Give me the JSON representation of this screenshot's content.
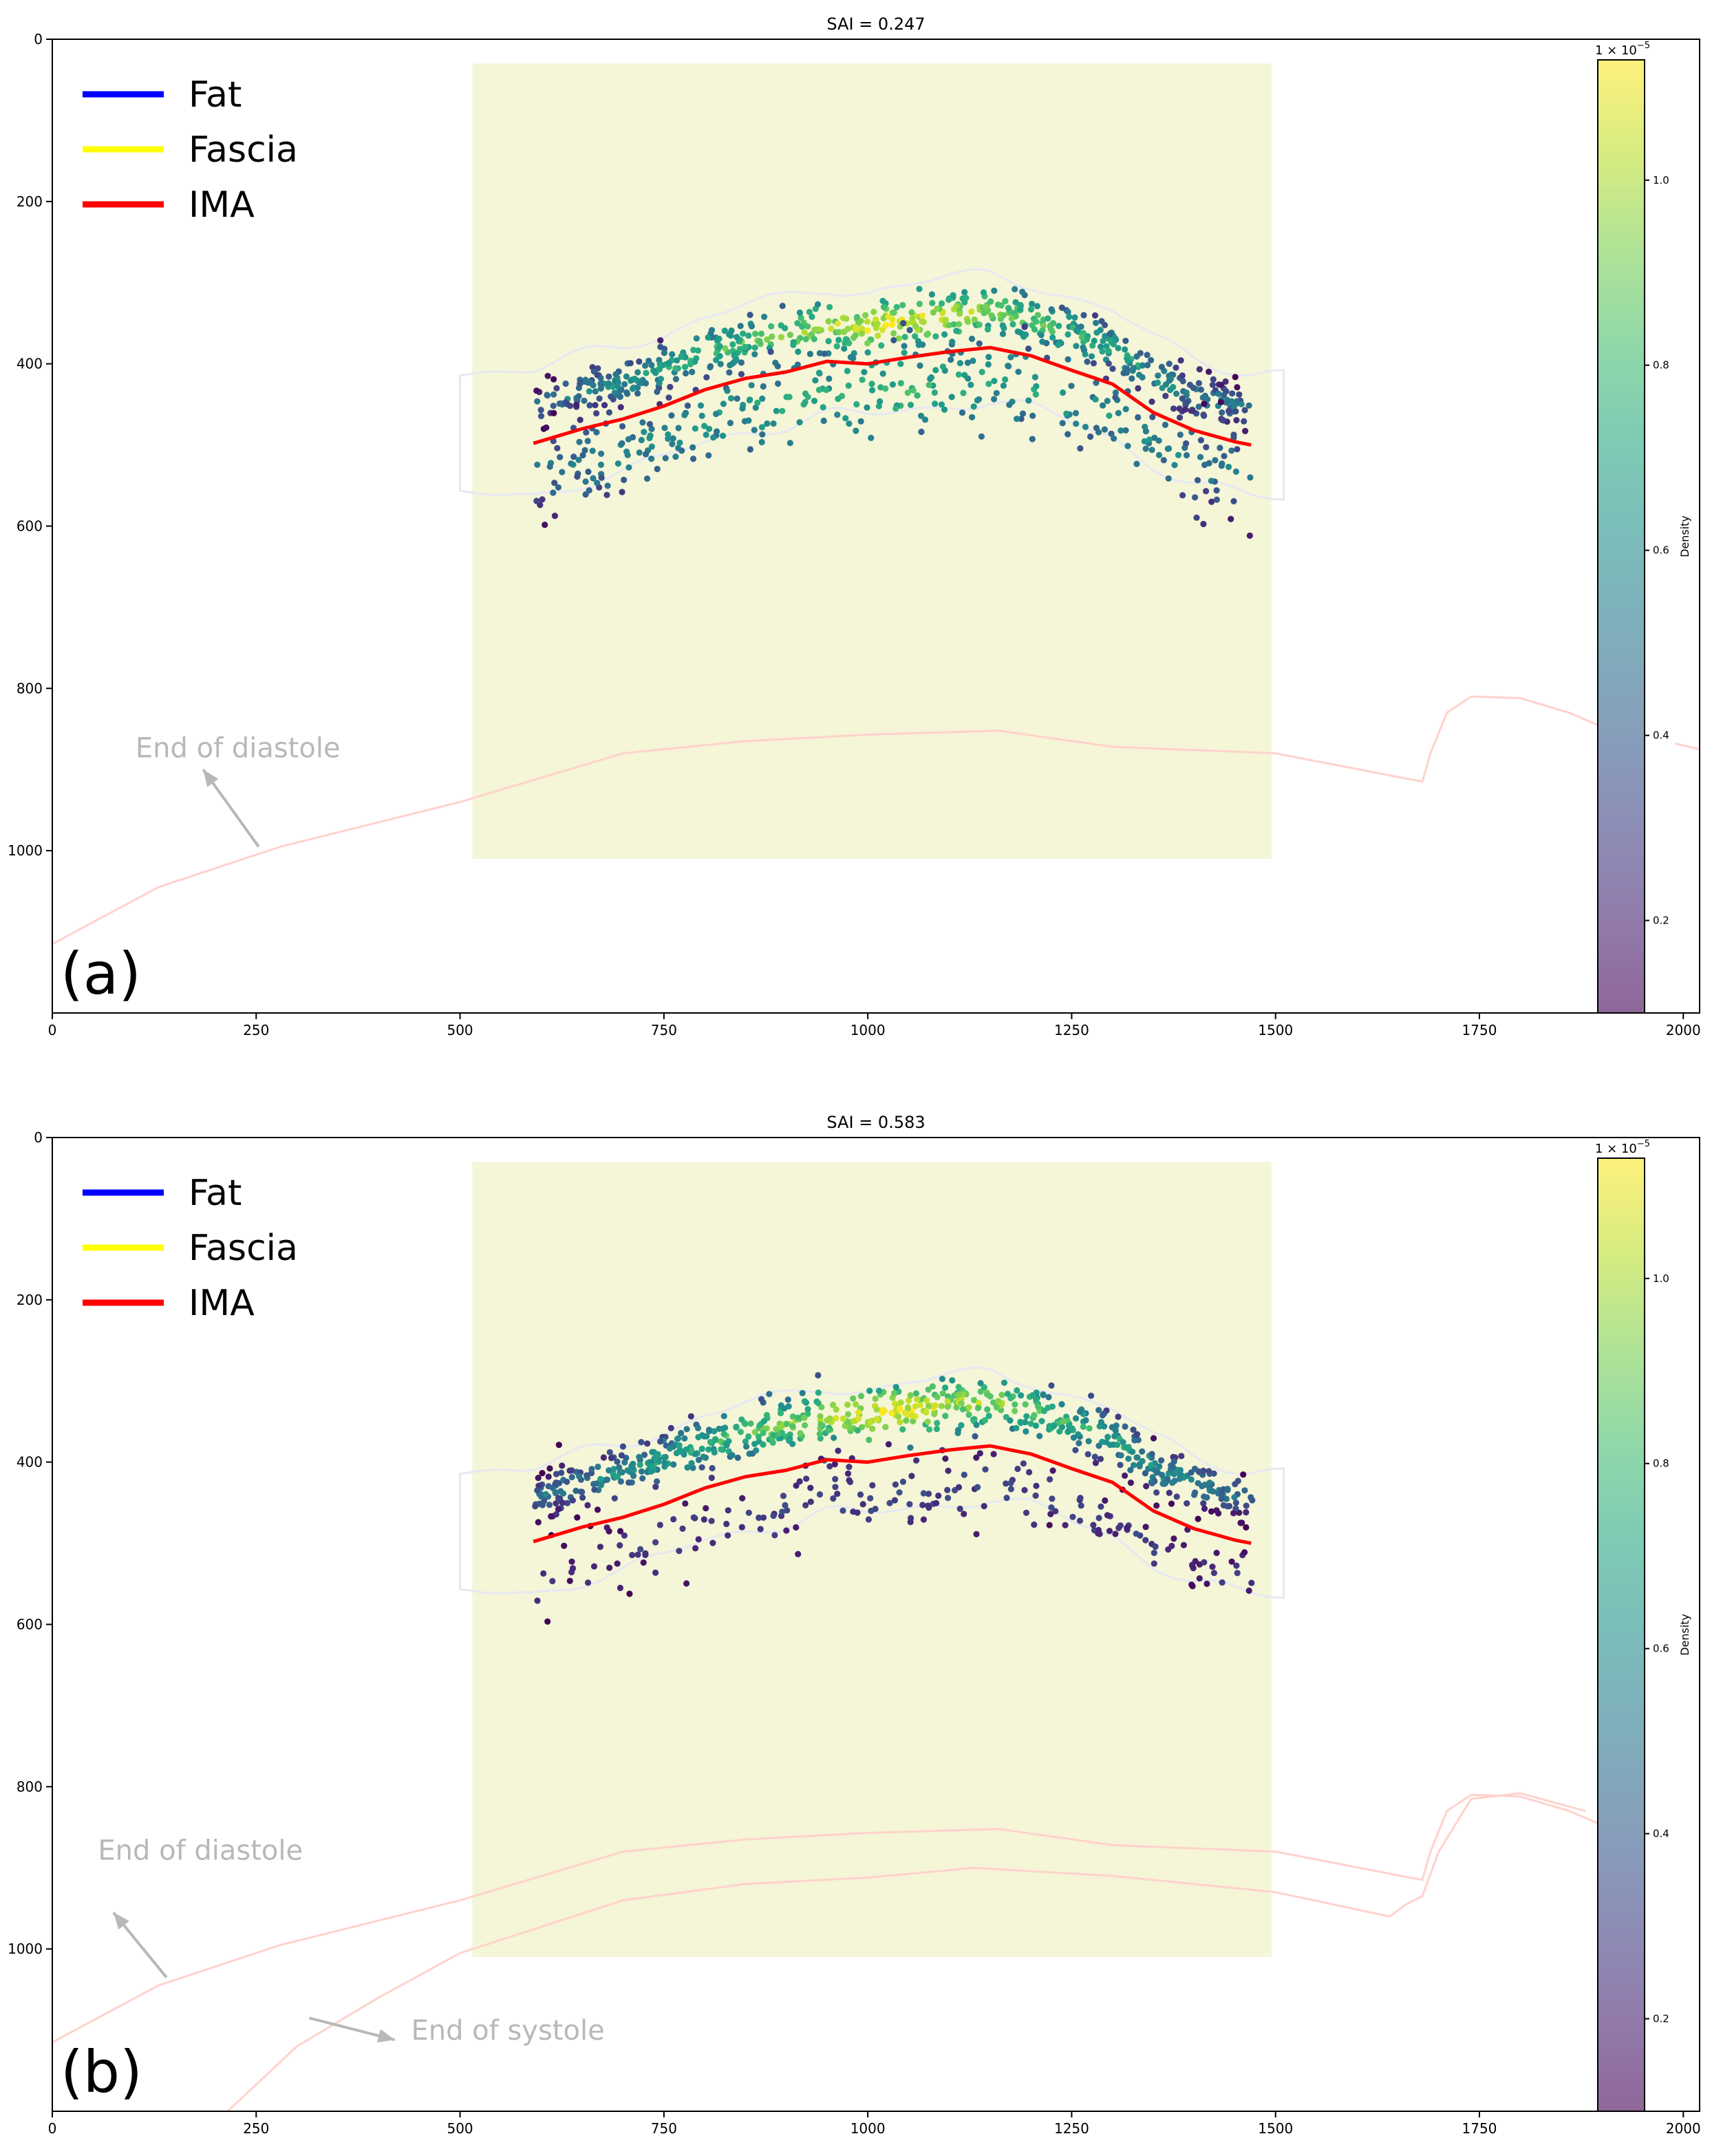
{
  "colors": {
    "fat": "#0000ff",
    "fascia": "#ffff00",
    "ima": "#ff0000",
    "roi": "#f5f5d8",
    "contour": "#e6e8f2",
    "boundary": "#ffd2cc",
    "annotation": "#b8b8b8"
  },
  "chart_data": [
    {
      "type": "scatter",
      "panel_label": "(a)",
      "title": "SAI = 0.247",
      "xlabel": "",
      "ylabel": "",
      "xlim": [
        0,
        2020
      ],
      "ylim": [
        1200,
        0
      ],
      "xticks": [
        0,
        250,
        500,
        750,
        1000,
        1250,
        1500,
        1750,
        2000
      ],
      "yticks": [
        0,
        200,
        400,
        600,
        800,
        1000
      ],
      "legend": {
        "placement": "top-left",
        "entries": [
          {
            "label": "Fat",
            "color": "#0000ff"
          },
          {
            "label": "Fascia",
            "color": "#ffff00"
          },
          {
            "label": "IMA",
            "color": "#ff0000"
          }
        ]
      },
      "roi_box": {
        "x": [
          515,
          1495
        ],
        "y": [
          30,
          1010
        ]
      },
      "ima_curve": {
        "x": [
          590,
          650,
          700,
          750,
          800,
          850,
          900,
          950,
          1000,
          1050,
          1100,
          1150,
          1200,
          1250,
          1300,
          1350,
          1400,
          1450,
          1470
        ],
        "y": [
          498,
          480,
          468,
          452,
          432,
          418,
          410,
          397,
          400,
          392,
          385,
          380,
          390,
          408,
          425,
          460,
          482,
          496,
          500
        ]
      },
      "fascia_band": {
        "offset": -45,
        "spread": 28
      },
      "fat_band": {
        "offset": 40,
        "spread": 55
      },
      "boundary_curves": [
        {
          "label": "End of diastole",
          "x": [
            0,
            130,
            280,
            500,
            700,
            850,
            1000,
            1160,
            1300,
            1500,
            1680,
            1690,
            1710,
            1740,
            1800,
            1860,
            1895
          ],
          "y": [
            1115,
            1045,
            995,
            940,
            880,
            865,
            857,
            852,
            872,
            880,
            915,
            880,
            830,
            810,
            812,
            830,
            845
          ]
        },
        {
          "label": "",
          "x": [
            1990,
            2020
          ],
          "y": [
            868,
            875
          ]
        }
      ],
      "annotations": [
        {
          "text": "End of diastole",
          "text_at": [
            102,
            885
          ],
          "arrow_from": [
            253,
            995
          ],
          "arrow_to": [
            185,
            900
          ]
        }
      ],
      "colorbar": {
        "label": "Density",
        "scale_label": "1 × 10",
        "scale_exponent": "−5",
        "range": [
          0.1,
          1.13
        ],
        "ticks": [
          0.2,
          0.4,
          0.6,
          0.8,
          1.0
        ],
        "tick_labels": [
          "0.2",
          "0.4",
          "0.6",
          "0.8",
          "1.0"
        ],
        "colormap": "viridis",
        "alpha": 0.6
      }
    },
    {
      "type": "scatter",
      "panel_label": "(b)",
      "title": "SAI = 0.583",
      "xlabel": "",
      "ylabel": "",
      "xlim": [
        0,
        2020
      ],
      "ylim": [
        1200,
        0
      ],
      "xticks": [
        0,
        250,
        500,
        750,
        1000,
        1250,
        1500,
        1750,
        2000
      ],
      "yticks": [
        0,
        200,
        400,
        600,
        800,
        1000
      ],
      "legend": {
        "placement": "top-left",
        "entries": [
          {
            "label": "Fat",
            "color": "#0000ff"
          },
          {
            "label": "Fascia",
            "color": "#ffff00"
          },
          {
            "label": "IMA",
            "color": "#ff0000"
          }
        ]
      },
      "roi_box": {
        "x": [
          515,
          1495
        ],
        "y": [
          30,
          1010
        ]
      },
      "ima_curve": {
        "x": [
          590,
          650,
          700,
          750,
          800,
          850,
          900,
          950,
          1000,
          1050,
          1100,
          1150,
          1200,
          1250,
          1300,
          1350,
          1400,
          1450,
          1470
        ],
        "y": [
          498,
          480,
          468,
          452,
          432,
          418,
          410,
          397,
          400,
          392,
          385,
          380,
          390,
          408,
          425,
          460,
          482,
          496,
          500
        ]
      },
      "fascia_band": {
        "offset": -55,
        "spread": 30
      },
      "fat_band": {
        "offset": 45,
        "spread": 45
      },
      "boundary_curves": [
        {
          "label": "End of diastole",
          "x": [
            0,
            130,
            280,
            500,
            700,
            850,
            1000,
            1160,
            1300,
            1500,
            1680,
            1690,
            1710,
            1740,
            1800,
            1860,
            1895
          ],
          "y": [
            1115,
            1045,
            995,
            940,
            880,
            865,
            857,
            852,
            872,
            880,
            915,
            880,
            830,
            810,
            812,
            830,
            845
          ]
        },
        {
          "label": "End of systole",
          "x": [
            215,
            300,
            400,
            500,
            700,
            850,
            1000,
            1130,
            1300,
            1500,
            1640,
            1660,
            1680,
            1700,
            1740,
            1800,
            1880
          ],
          "y": [
            1200,
            1120,
            1060,
            1005,
            940,
            920,
            912,
            900,
            910,
            930,
            960,
            945,
            935,
            880,
            815,
            808,
            830
          ]
        }
      ],
      "annotations": [
        {
          "text": "End of diastole",
          "text_at": [
            56,
            890
          ],
          "arrow_from": [
            140,
            1035
          ],
          "arrow_to": [
            75,
            955
          ]
        },
        {
          "text": "End of systole",
          "text_at": [
            440,
            1112
          ],
          "arrow_from": [
            315,
            1085
          ],
          "arrow_to": [
            420,
            1112
          ]
        }
      ],
      "colorbar": {
        "label": "Density",
        "scale_label": "1 × 10",
        "scale_exponent": "−5",
        "range": [
          0.1,
          1.13
        ],
        "ticks": [
          0.2,
          0.4,
          0.6,
          0.8,
          1.0
        ],
        "tick_labels": [
          "0.2",
          "0.4",
          "0.6",
          "0.8",
          "1.0"
        ],
        "colormap": "viridis",
        "alpha": 0.6
      }
    }
  ]
}
